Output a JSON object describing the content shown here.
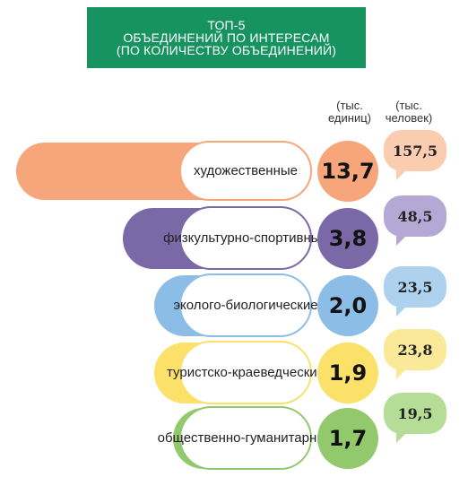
{
  "title_lines": [
    "ТОП-5",
    "ОБЪЕДИНЕНИЙ ПО ИНТЕРЕСАМ",
    "(ПО КОЛИЧЕСТВУ ОБЪЕДИНЕНИЙ)"
  ],
  "units": {
    "associations": [
      "(тыс.",
      "единиц)"
    ],
    "people": [
      "(тыс.",
      "человек)"
    ]
  },
  "chart_data": {
    "type": "bar",
    "title": "ТОП-5 ОБЪЕДИНЕНИЙ ПО ИНТЕРЕСАМ (ПО КОЛИЧЕСТВУ ОБЪЕДИНЕНИЙ)",
    "categories": [
      [
        "художественные"
      ],
      [
        "физкультурно-",
        "спортивные"
      ],
      [
        "эколого-",
        "биологические"
      ],
      [
        "туристско-",
        "краеведческие"
      ],
      [
        "общественно-",
        "гуманитарные"
      ]
    ],
    "series": [
      {
        "name": "(тыс. единиц)",
        "values": [
          "13,7",
          "3,8",
          "2,0",
          "1,9",
          "1,7"
        ]
      },
      {
        "name": "(тыс. человек)",
        "values": [
          "157,5",
          "48,5",
          "23,5",
          "23,8",
          "19,5"
        ]
      }
    ],
    "colors": [
      "#f6a67a",
      "#7b68a6",
      "#8cbde6",
      "#fbe06a",
      "#93c96d"
    ],
    "bubble_colors": [
      "#fbcdb0",
      "#b4a9d4",
      "#aed1ee",
      "#fbe99a",
      "#b6dd97"
    ]
  }
}
